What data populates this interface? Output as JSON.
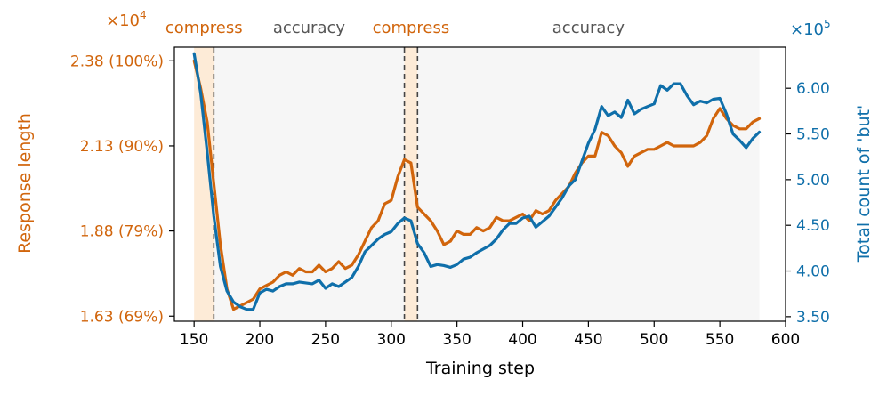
{
  "chart_data": {
    "type": "line",
    "xlabel": "Training step",
    "ylabel_left": "Response length",
    "ylabel_right": "Total count of 'but'",
    "left_multiplier": "×10",
    "left_multiplier_exp": "4",
    "right_multiplier": "×10",
    "right_multiplier_exp": "5",
    "xlim": [
      135,
      600
    ],
    "ylim_left": [
      1.615,
      2.42
    ],
    "ylim_right": [
      3.45,
      6.45
    ],
    "xticks": [
      150,
      200,
      250,
      300,
      350,
      400,
      450,
      500,
      550,
      600
    ],
    "xtick_labels": [
      "150",
      "200",
      "250",
      "300",
      "350",
      "400",
      "450",
      "500",
      "550",
      "600"
    ],
    "yticks_left": [
      1.63,
      1.88,
      2.13,
      2.38
    ],
    "ytick_labels_left": [
      "1.63 (69%)",
      "1.88 (79%)",
      "2.13 (90%)",
      "2.38 (100%)"
    ],
    "yticks_right": [
      3.5,
      4.0,
      4.5,
      5.0,
      5.5,
      6.0
    ],
    "ytick_labels_right": [
      "3.50",
      "4.00",
      "4.50",
      "5.00",
      "5.50",
      "6.00"
    ],
    "phases": [
      {
        "label": "compress",
        "start": 150,
        "end": 165,
        "color": "#fdebd7"
      },
      {
        "label": "accuracy",
        "start": 165,
        "end": 310,
        "color": "#f6f6f6"
      },
      {
        "label": "compress",
        "start": 310,
        "end": 320,
        "color": "#fdebd7"
      },
      {
        "label": "accuracy",
        "start": 320,
        "end": 580,
        "color": "#f6f6f6"
      }
    ],
    "phase_label_colors": {
      "compress": "#d1650c",
      "accuracy": "#555555"
    },
    "boundaries": [
      165,
      310,
      320
    ],
    "colors": {
      "left": "#d1650c",
      "right": "#0f6faa"
    },
    "series": [
      {
        "name": "Response length",
        "axis": "left",
        "color": "#d1650c",
        "x": [
          150,
          155,
          160,
          165,
          170,
          175,
          180,
          185,
          190,
          195,
          200,
          205,
          210,
          215,
          220,
          225,
          230,
          235,
          240,
          245,
          250,
          255,
          260,
          265,
          270,
          275,
          280,
          285,
          290,
          295,
          300,
          305,
          310,
          315,
          320,
          325,
          330,
          335,
          340,
          345,
          350,
          355,
          360,
          365,
          370,
          375,
          380,
          385,
          390,
          395,
          400,
          405,
          410,
          415,
          420,
          425,
          430,
          435,
          440,
          445,
          450,
          455,
          460,
          465,
          470,
          475,
          480,
          485,
          490,
          495,
          500,
          505,
          510,
          515,
          520,
          525,
          530,
          535,
          540,
          545,
          550,
          555,
          560,
          565,
          570,
          575,
          580
        ],
        "y": [
          2.38,
          2.3,
          2.2,
          2.02,
          1.84,
          1.71,
          1.65,
          1.66,
          1.67,
          1.68,
          1.71,
          1.72,
          1.73,
          1.75,
          1.76,
          1.75,
          1.77,
          1.76,
          1.76,
          1.78,
          1.76,
          1.77,
          1.79,
          1.77,
          1.78,
          1.81,
          1.85,
          1.89,
          1.91,
          1.96,
          1.97,
          2.04,
          2.09,
          2.08,
          1.95,
          1.93,
          1.91,
          1.88,
          1.84,
          1.85,
          1.88,
          1.87,
          1.87,
          1.89,
          1.88,
          1.89,
          1.92,
          1.91,
          1.91,
          1.92,
          1.93,
          1.91,
          1.94,
          1.93,
          1.94,
          1.97,
          1.99,
          2.01,
          2.05,
          2.08,
          2.1,
          2.1,
          2.17,
          2.16,
          2.13,
          2.11,
          2.07,
          2.1,
          2.11,
          2.12,
          2.12,
          2.13,
          2.14,
          2.13,
          2.13,
          2.13,
          2.13,
          2.14,
          2.16,
          2.21,
          2.24,
          2.21,
          2.19,
          2.18,
          2.18,
          2.2,
          2.21
        ]
      },
      {
        "name": "Total count of 'but'",
        "axis": "right",
        "color": "#0f6faa",
        "x": [
          150,
          155,
          160,
          165,
          170,
          175,
          180,
          185,
          190,
          195,
          200,
          205,
          210,
          215,
          220,
          225,
          230,
          235,
          240,
          245,
          250,
          255,
          260,
          265,
          270,
          275,
          280,
          285,
          290,
          295,
          300,
          305,
          310,
          315,
          320,
          325,
          330,
          335,
          340,
          345,
          350,
          355,
          360,
          365,
          370,
          375,
          380,
          385,
          390,
          395,
          400,
          405,
          410,
          415,
          420,
          425,
          430,
          435,
          440,
          445,
          450,
          455,
          460,
          465,
          470,
          475,
          480,
          485,
          490,
          495,
          500,
          505,
          510,
          515,
          520,
          525,
          530,
          535,
          540,
          545,
          550,
          555,
          560,
          565,
          570,
          575,
          580
        ],
        "y": [
          6.38,
          5.95,
          5.3,
          4.6,
          4.05,
          3.78,
          3.66,
          3.61,
          3.58,
          3.58,
          3.76,
          3.8,
          3.78,
          3.83,
          3.86,
          3.86,
          3.88,
          3.87,
          3.86,
          3.9,
          3.81,
          3.86,
          3.83,
          3.88,
          3.93,
          4.05,
          4.21,
          4.28,
          4.35,
          4.4,
          4.43,
          4.52,
          4.58,
          4.55,
          4.3,
          4.2,
          4.05,
          4.07,
          4.06,
          4.04,
          4.07,
          4.13,
          4.15,
          4.2,
          4.24,
          4.28,
          4.35,
          4.45,
          4.52,
          4.52,
          4.58,
          4.6,
          4.48,
          4.54,
          4.6,
          4.7,
          4.8,
          4.93,
          5.0,
          5.2,
          5.4,
          5.55,
          5.8,
          5.7,
          5.74,
          5.68,
          5.87,
          5.72,
          5.77,
          5.8,
          5.83,
          6.03,
          5.98,
          6.05,
          6.05,
          5.92,
          5.82,
          5.86,
          5.84,
          5.88,
          5.89,
          5.72,
          5.5,
          5.43,
          5.35,
          5.45,
          5.52
        ]
      }
    ]
  }
}
